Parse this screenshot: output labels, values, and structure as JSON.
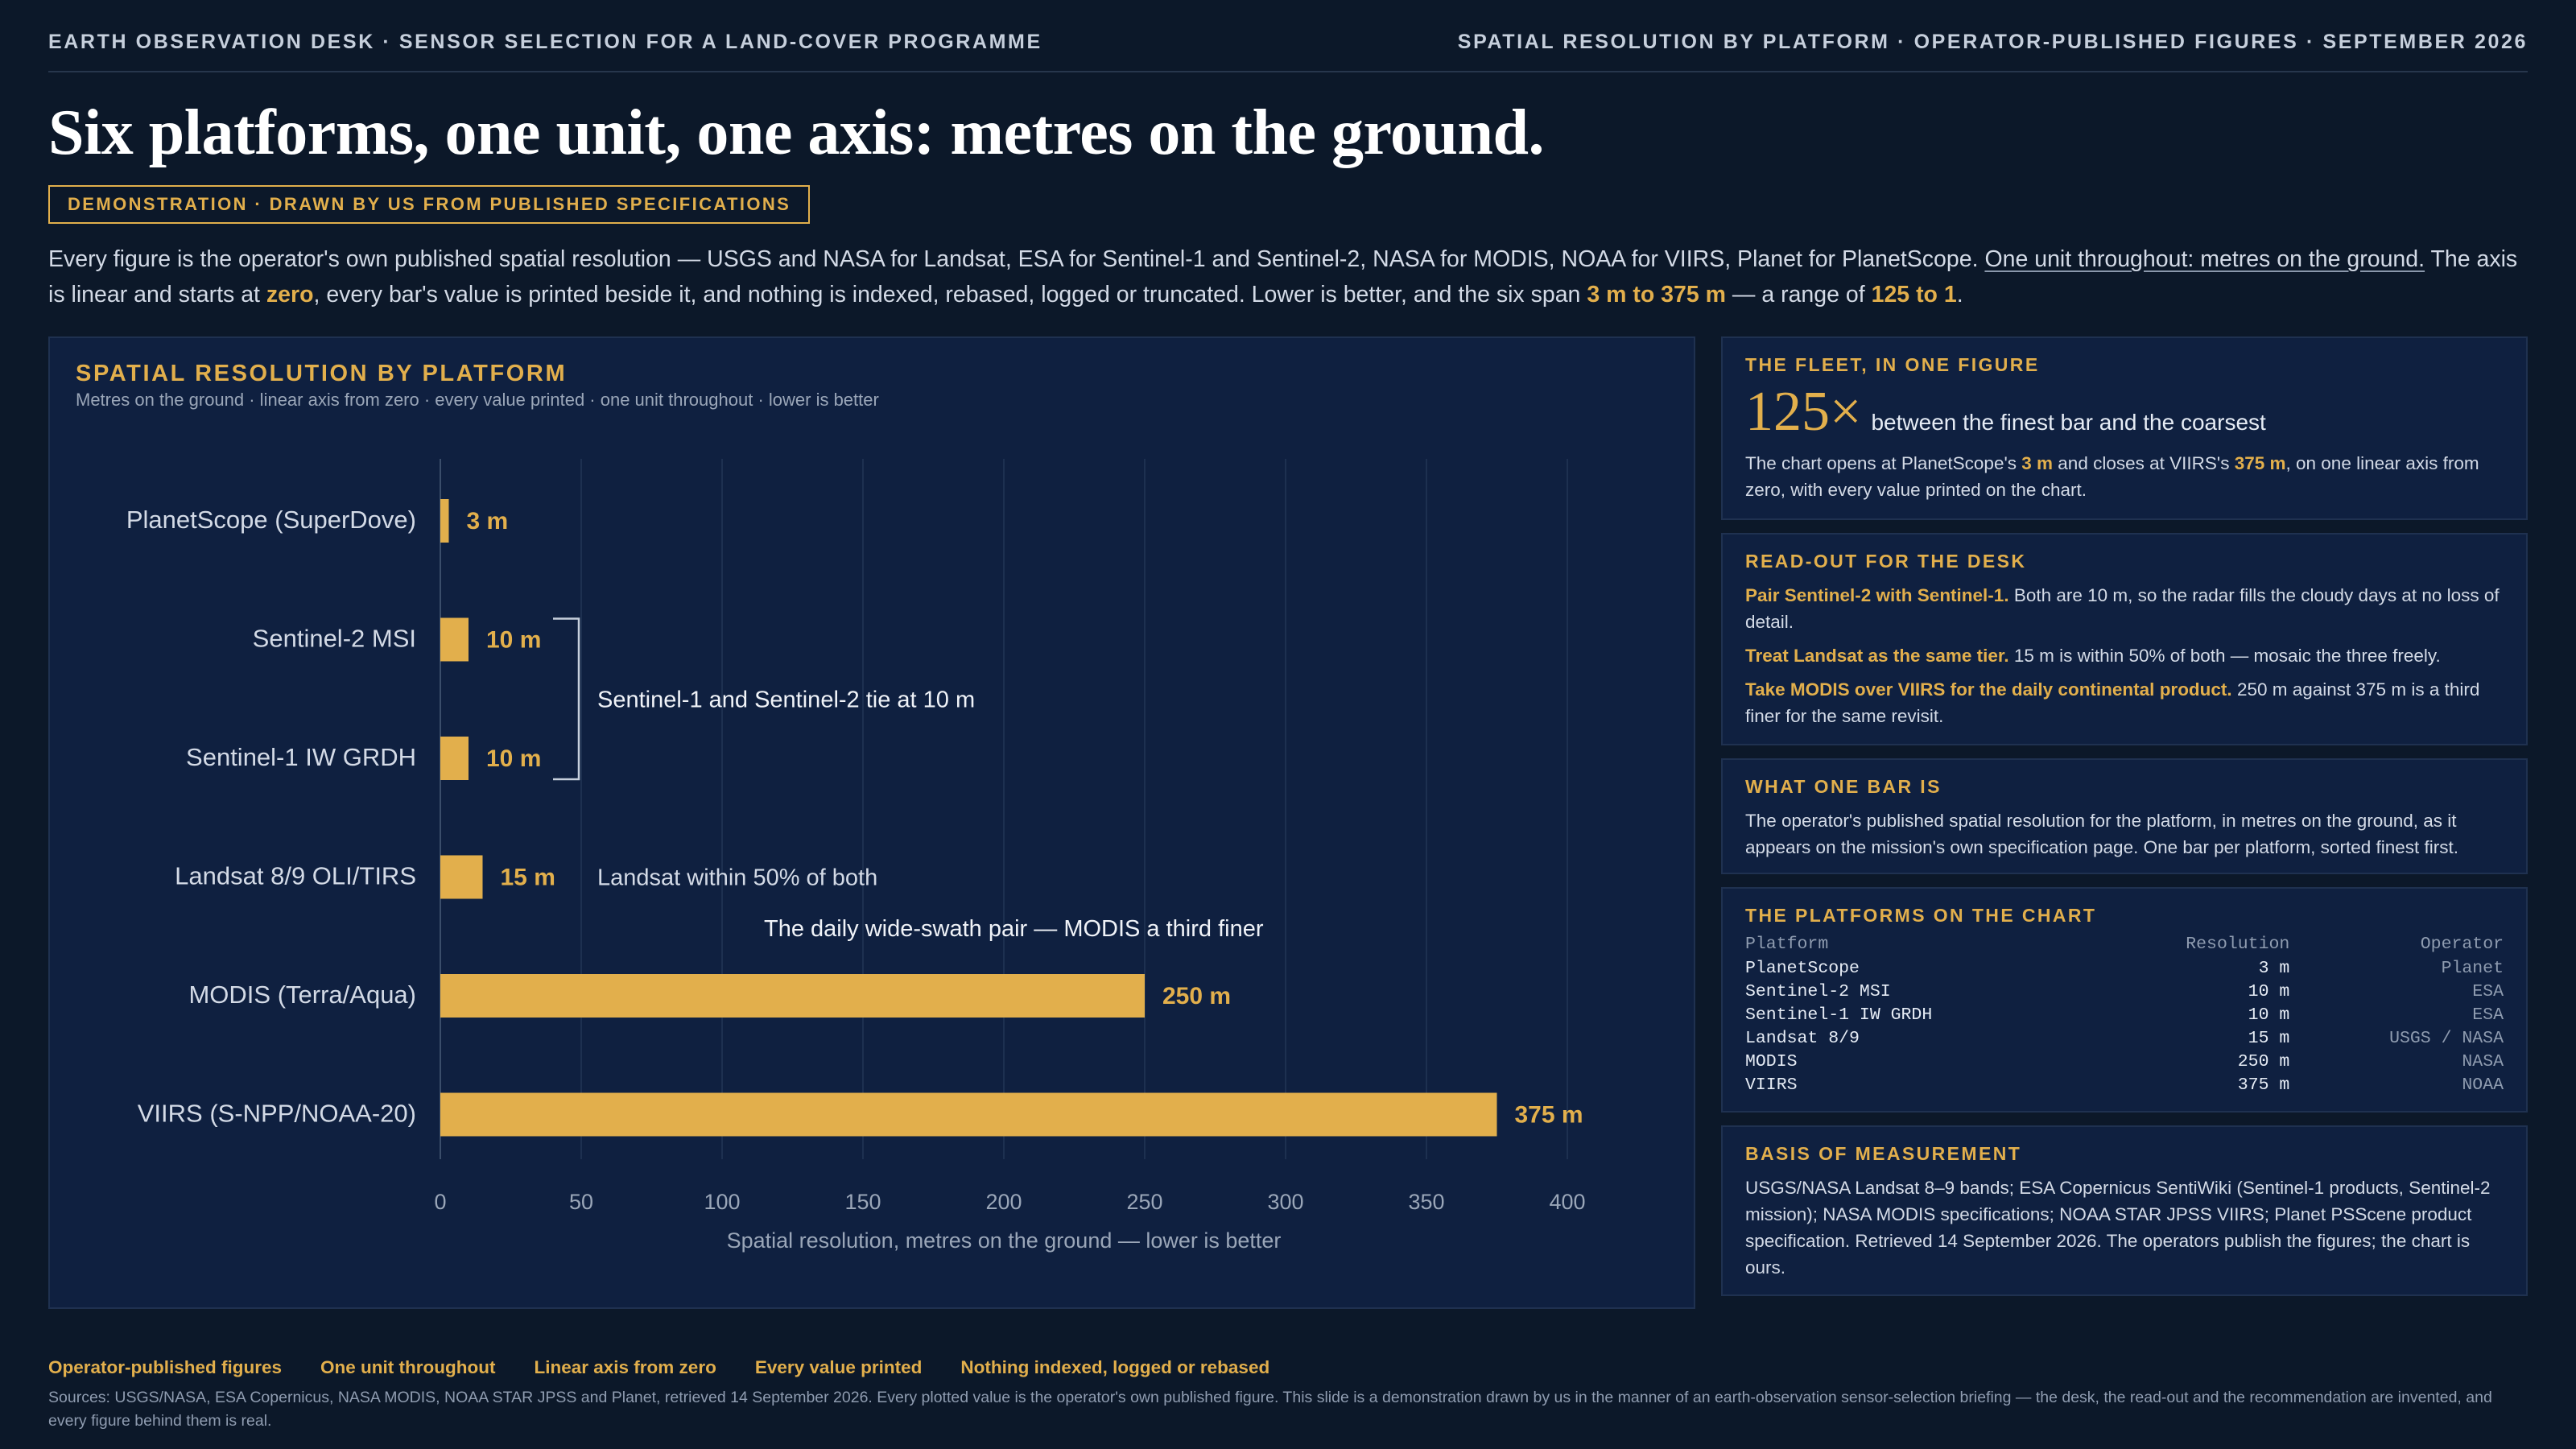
{
  "header": {
    "left": "EARTH OBSERVATION DESK · SENSOR SELECTION FOR A LAND-COVER PROGRAMME",
    "right": "SPATIAL RESOLUTION BY PLATFORM · OPERATOR-PUBLISHED FIGURES · SEPTEMBER 2026"
  },
  "title": "Six platforms, one unit, one axis: metres on the ground.",
  "badge": "DEMONSTRATION · DRAWN BY US FROM PUBLISHED SPECIFICATIONS",
  "intro": {
    "p1": "Every figure is the operator's own published spatial resolution — USGS and NASA for Landsat, ESA for Sentinel-1 and Sentinel-2, NASA for MODIS, NOAA for VIIRS, Planet for PlanetScope. ",
    "p2": "One unit throughout: metres on the ground.",
    "p3": " The axis is linear and starts at ",
    "p4": "zero",
    "p5": ", every bar's value is printed beside it, and nothing is indexed, rebased, logged or truncated. Lower is better, and the six span ",
    "p6": "3 m to 375 m",
    "p7": " — a range of ",
    "p8": "125 to 1",
    "p9": "."
  },
  "chart_panel": {
    "title": "SPATIAL RESOLUTION BY PLATFORM",
    "subtitle": "Metres on the ground · linear axis from zero · every value printed · one unit throughout · lower is better"
  },
  "chart_data": {
    "type": "bar",
    "orientation": "horizontal",
    "categories": [
      "PlanetScope (SuperDove)",
      "Sentinel-2 MSI",
      "Sentinel-1 IW GRDH",
      "Landsat 8/9 OLI/TIRS",
      "MODIS (Terra/Aqua)",
      "VIIRS (S-NPP/NOAA-20)"
    ],
    "values": [
      3,
      10,
      10,
      15,
      250,
      375
    ],
    "value_labels": [
      "3 m",
      "10 m",
      "10 m",
      "15 m",
      "250 m",
      "375 m"
    ],
    "xlim": [
      0,
      400
    ],
    "xticks": [
      0,
      50,
      100,
      150,
      200,
      250,
      300,
      350,
      400
    ],
    "xlabel": "Spatial resolution, metres on the ground — lower is better",
    "ylabel": "",
    "grid": true,
    "bar_color": "#e2af4c",
    "annotations": [
      "Sentinel-1 and Sentinel-2 tie at 10 m",
      "Landsat within 50% of both",
      "The daily wide-swath pair — MODIS a third finer"
    ]
  },
  "side": {
    "fleet": {
      "heading": "THE FLEET, IN ONE FIGURE",
      "big_number": "125×",
      "big_text": "between the finest bar and the coarsest",
      "t1": "The chart opens at PlanetScope's ",
      "t2": "3 m",
      "t3": " and closes at VIIRS's ",
      "t4": "375 m",
      "t5": ", on one linear axis from zero, with every value printed on the chart."
    },
    "readout": {
      "heading": "READ-OUT FOR THE DESK",
      "items": [
        {
          "bold": "Pair Sentinel-2 with Sentinel-1.",
          "text": " Both are 10 m, so the radar fills the cloudy days at no loss of detail."
        },
        {
          "bold": "Treat Landsat as the same tier.",
          "text": " 15 m is within 50% of both — mosaic the three freely."
        },
        {
          "bold": "Take MODIS over VIIRS for the daily continental product.",
          "text": " 250 m against 375 m is a third finer for the same revisit."
        }
      ]
    },
    "onebar": {
      "heading": "WHAT ONE BAR IS",
      "text": "The operator's published spatial resolution for the platform, in metres on the ground, as it appears on the mission's own specification page. One bar per platform, sorted finest first."
    },
    "platforms": {
      "heading": "THE PLATFORMS ON THE CHART",
      "col_platform": "Platform",
      "col_resolution": "Resolution",
      "col_operator": "Operator",
      "rows": [
        {
          "p": "PlanetScope",
          "r": "3 m",
          "o": "Planet"
        },
        {
          "p": "Sentinel-2 MSI",
          "r": "10 m",
          "o": "ESA"
        },
        {
          "p": "Sentinel-1 IW GRDH",
          "r": "10 m",
          "o": "ESA"
        },
        {
          "p": "Landsat 8/9",
          "r": "15 m",
          "o": "USGS / NASA"
        },
        {
          "p": "MODIS",
          "r": "250 m",
          "o": "NASA"
        },
        {
          "p": "VIIRS",
          "r": "375 m",
          "o": "NOAA"
        }
      ]
    },
    "basis": {
      "heading": "BASIS OF MEASUREMENT",
      "text": "USGS/NASA Landsat 8–9 bands; ESA Copernicus SentiWiki (Sentinel-1 products, Sentinel-2 mission); NASA MODIS specifications; NOAA STAR JPSS VIIRS; Planet PSScene product specification. Retrieved 14 September 2026. The operators publish the figures; the chart is ours."
    }
  },
  "footer": {
    "tags": [
      "Operator-published figures",
      "One unit throughout",
      "Linear axis from zero",
      "Every value printed",
      "Nothing indexed, logged or rebased"
    ],
    "sources": "Sources: USGS/NASA, ESA Copernicus, NASA MODIS, NOAA STAR JPSS and Planet, retrieved 14 September 2026. Every plotted value is the operator's own published figure. This slide is a demonstration drawn by us in the manner of an earth-observation sensor-selection briefing — the desk, the read-out and the recommendation are invented, and every figure behind them is real."
  }
}
